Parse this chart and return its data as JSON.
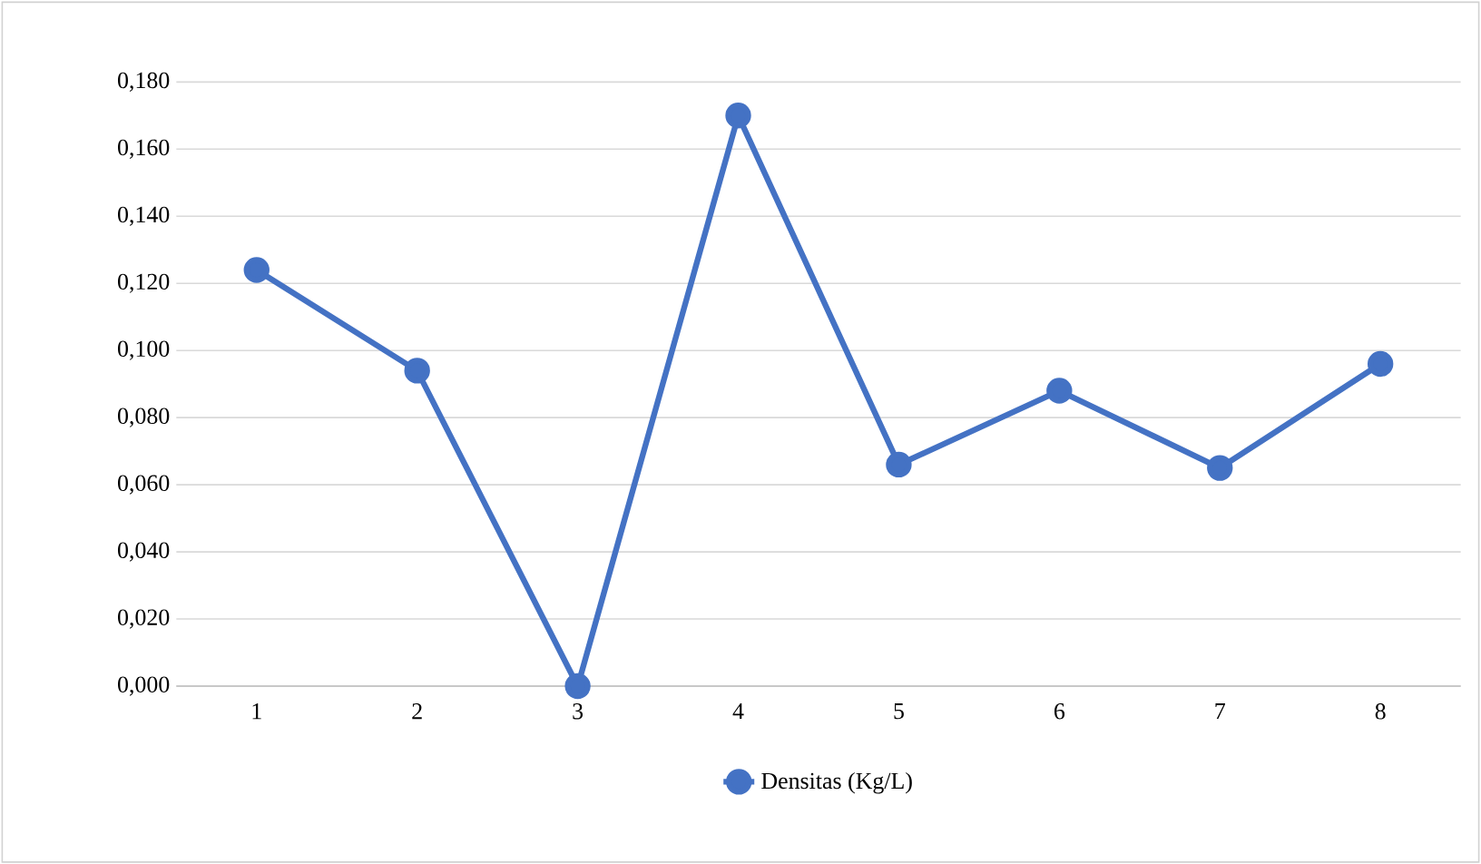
{
  "chart_data": {
    "type": "line",
    "categories": [
      "1",
      "2",
      "3",
      "4",
      "5",
      "6",
      "7",
      "8"
    ],
    "series": [
      {
        "name": "Densitas (Kg/L)",
        "color": "#4472c4",
        "values": [
          0.124,
          0.094,
          0.0,
          0.17,
          0.066,
          0.088,
          0.065,
          0.096
        ]
      }
    ],
    "ylim": [
      0,
      0.18
    ],
    "yticks": [
      {
        "value": 0,
        "label": "0,000"
      },
      {
        "value": 0.02,
        "label": "0,020"
      },
      {
        "value": 0.04,
        "label": "0,040"
      },
      {
        "value": 0.06,
        "label": "0,060"
      },
      {
        "value": 0.08,
        "label": "0,080"
      },
      {
        "value": 0.1,
        "label": "0,100"
      },
      {
        "value": 0.12,
        "label": "0,120"
      },
      {
        "value": 0.14,
        "label": "0,140"
      },
      {
        "value": 0.16,
        "label": "0,160"
      },
      {
        "value": 0.18,
        "label": "0,180"
      }
    ],
    "grid": "y",
    "legend": "bottom",
    "marker": "circle",
    "line_style": "solid"
  }
}
